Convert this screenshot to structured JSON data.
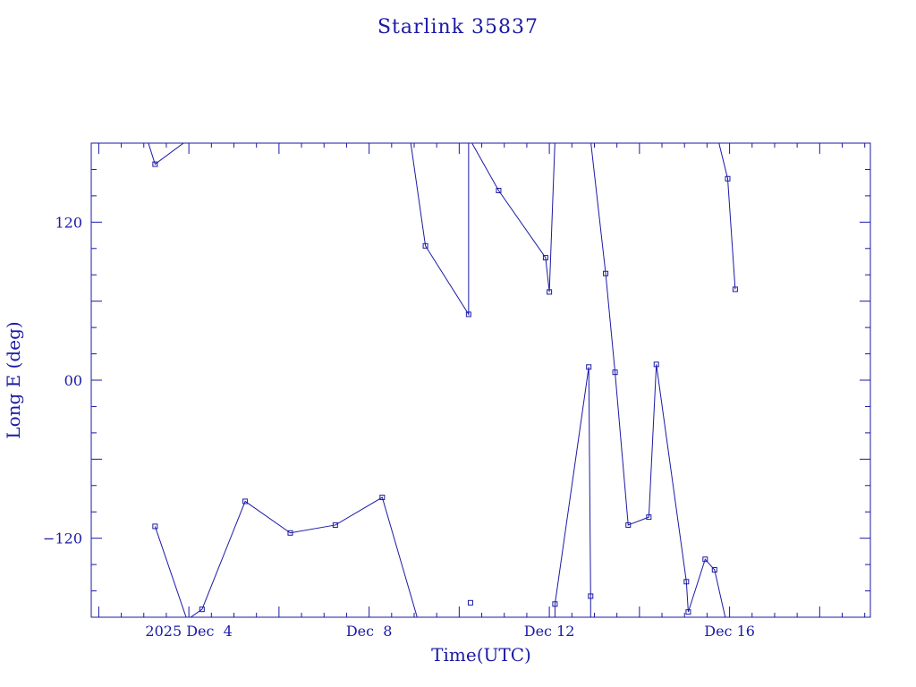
{
  "chart_data": {
    "type": "line",
    "title": "Starlink 35837",
    "xlabel": "Time(UTC)",
    "ylabel": "Long E (deg)",
    "xlim": [
      "2025-12-01T20:00",
      "2025-12-19T03:00"
    ],
    "ylim": [
      -180,
      180
    ],
    "x_tick_labels": [
      {
        "x": "2025-12-04",
        "label": "2025 Dec  4"
      },
      {
        "x": "2025-12-08",
        "label": "Dec  8"
      },
      {
        "x": "2025-12-12",
        "label": "Dec 12"
      },
      {
        "x": "2025-12-16",
        "label": "Dec 16"
      }
    ],
    "y_tick_labels": [
      {
        "y": 120,
        "label": "120"
      },
      {
        "y": 0,
        "label": "00"
      },
      {
        "y": -120,
        "label": "−120"
      }
    ],
    "grid": false,
    "color": "#1a1aa6",
    "series": [
      {
        "points": [
          {
            "x": "2025-12-03T06:00",
            "y": -111
          },
          {
            "x": "2025-12-03T23:00",
            "y": -182
          },
          {
            "x": "2025-12-03T02:00",
            "y": 182
          },
          {
            "x": "2025-12-03T06:00",
            "y": 164
          },
          {
            "x": "2025-12-03T23:00",
            "y": 182
          },
          {
            "x": "2025-12-03T23:00",
            "y": -182
          },
          {
            "x": "2025-12-04T07:00",
            "y": -174
          },
          {
            "x": "2025-12-05T06:00",
            "y": -92
          },
          {
            "x": "2025-12-06T06:00",
            "y": -116
          },
          {
            "x": "2025-12-07T06:00",
            "y": -110
          },
          {
            "x": "2025-12-08T07:00",
            "y": -89
          },
          {
            "x": "2025-12-09T02:00",
            "y": -182
          },
          {
            "x": "2025-12-08T22:00",
            "y": 182
          },
          {
            "x": "2025-12-09T06:00",
            "y": 102
          },
          {
            "x": "2025-12-10T05:00",
            "y": 50
          },
          {
            "x": "2025-12-10T05:00",
            "y": 182
          },
          {
            "x": "2025-12-10T06:00",
            "y": 182
          },
          {
            "x": "2025-12-10T21:00",
            "y": 144
          },
          {
            "x": "2025-12-11T22:00",
            "y": 93
          },
          {
            "x": "2025-12-12T00:00",
            "y": 67
          },
          {
            "x": "2025-12-12T03:00",
            "y": 182
          },
          {
            "x": "2025-12-12T03:00",
            "y": -182
          },
          {
            "x": "2025-12-12T03:00",
            "y": -170
          },
          {
            "x": "2025-12-12T21:00",
            "y": 10
          },
          {
            "x": "2025-12-12T22:00",
            "y": -164
          },
          {
            "x": "2025-12-12T22:00",
            "y": -182
          },
          {
            "x": "2025-12-12T22:00",
            "y": 182
          },
          {
            "x": "2025-12-13T06:00",
            "y": 81
          },
          {
            "x": "2025-12-13T11:00",
            "y": 6
          },
          {
            "x": "2025-12-13T18:00",
            "y": -110
          },
          {
            "x": "2025-12-14T05:00",
            "y": -104
          },
          {
            "x": "2025-12-14T09:00",
            "y": 12
          },
          {
            "x": "2025-12-15T01:00",
            "y": -153
          },
          {
            "x": "2025-12-15T02:00",
            "y": -176
          },
          {
            "x": "2025-12-15T11:00",
            "y": -136
          },
          {
            "x": "2025-12-15T16:00",
            "y": -144
          },
          {
            "x": "2025-12-15T22:00",
            "y": -182
          },
          {
            "x": "2025-12-15T18:00",
            "y": 182
          },
          {
            "x": "2025-12-15T23:00",
            "y": 153
          },
          {
            "x": "2025-12-16T03:00",
            "y": 69
          }
        ]
      }
    ],
    "markers": [
      {
        "x": "2025-12-03T06:00",
        "y": -111
      },
      {
        "x": "2025-12-03T06:00",
        "y": 164
      },
      {
        "x": "2025-12-04T07:00",
        "y": -174
      },
      {
        "x": "2025-12-05T06:00",
        "y": -92
      },
      {
        "x": "2025-12-06T06:00",
        "y": -116
      },
      {
        "x": "2025-12-07T06:00",
        "y": -110
      },
      {
        "x": "2025-12-08T07:00",
        "y": -89
      },
      {
        "x": "2025-12-09T06:00",
        "y": 102
      },
      {
        "x": "2025-12-10T05:00",
        "y": 50
      },
      {
        "x": "2025-12-10T06:00",
        "y": -169
      },
      {
        "x": "2025-12-10T21:00",
        "y": 144
      },
      {
        "x": "2025-12-11T22:00",
        "y": 93
      },
      {
        "x": "2025-12-12T00:00",
        "y": 67
      },
      {
        "x": "2025-12-12T03:00",
        "y": -170
      },
      {
        "x": "2025-12-12T21:00",
        "y": 10
      },
      {
        "x": "2025-12-12T22:00",
        "y": -164
      },
      {
        "x": "2025-12-13T06:00",
        "y": 81
      },
      {
        "x": "2025-12-13T11:00",
        "y": 6
      },
      {
        "x": "2025-12-13T18:00",
        "y": -110
      },
      {
        "x": "2025-12-14T05:00",
        "y": -104
      },
      {
        "x": "2025-12-14T09:00",
        "y": 12
      },
      {
        "x": "2025-12-15T01:00",
        "y": -153
      },
      {
        "x": "2025-12-15T02:00",
        "y": -176
      },
      {
        "x": "2025-12-15T11:00",
        "y": -136
      },
      {
        "x": "2025-12-15T16:00",
        "y": -144
      },
      {
        "x": "2025-12-15T23:00",
        "y": 153
      },
      {
        "x": "2025-12-16T03:00",
        "y": 69
      }
    ]
  }
}
